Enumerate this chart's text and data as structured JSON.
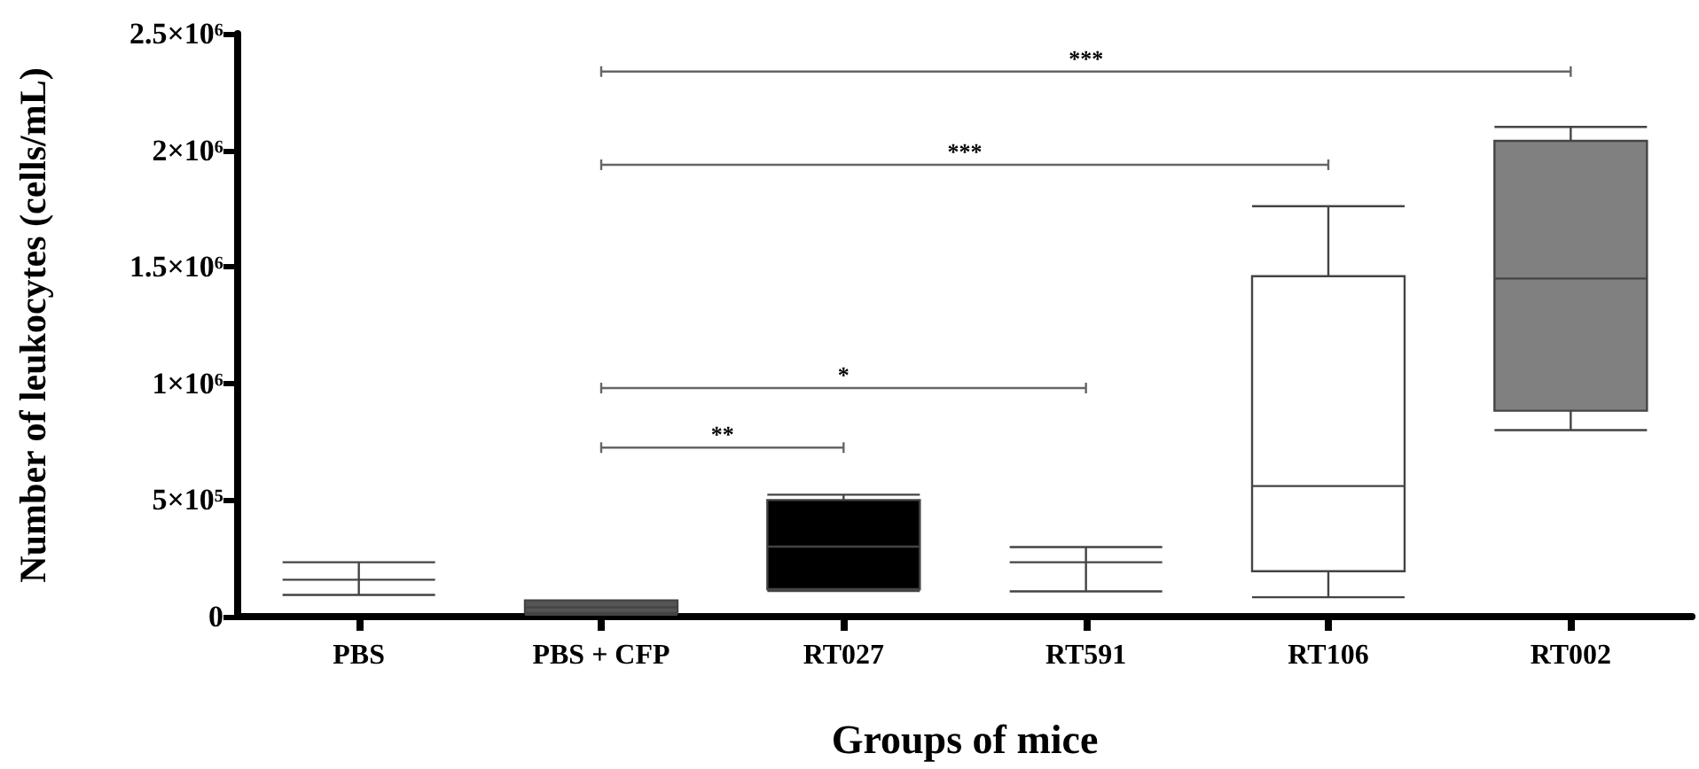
{
  "chart_data": {
    "type": "box",
    "xlabel": "Groups of mice",
    "ylabel": "Number of leukocytes (cells/mL)",
    "categories": [
      "PBS",
      "PBS + CFP",
      "RT027",
      "RT591",
      "RT106",
      "RT002"
    ],
    "boxes": [
      {
        "low": 93000,
        "q1": 158000,
        "median": 158000,
        "q3": 158000,
        "high": 233000
      },
      {
        "low": 8000,
        "q1": 15000,
        "median": 40000,
        "q3": 70000,
        "high": 70000
      },
      {
        "low": 110000,
        "q1": 118000,
        "median": 300000,
        "q3": 500000,
        "high": 523000
      },
      {
        "low": 108000,
        "q1": 233000,
        "median": 233000,
        "q3": 233000,
        "high": 298000
      },
      {
        "low": 83000,
        "q1": 195000,
        "median": 560000,
        "q3": 1460000,
        "high": 1760000
      },
      {
        "low": 800000,
        "q1": 883000,
        "median": 1450000,
        "q3": 2040000,
        "high": 2100000
      }
    ],
    "colors": [
      "#444444",
      "#555555",
      "#000000",
      "#444444",
      "#ffffff",
      "#808080"
    ],
    "ylim": [
      0,
      2500000
    ],
    "yticks": [
      0,
      {
        "value": 500000,
        "label": "5×10⁵"
      },
      {
        "value": 1000000,
        "label": "1×10⁶"
      },
      {
        "value": 1500000,
        "label": "1.5×10⁶"
      },
      {
        "value": 2000000,
        "label": "2×10⁶"
      },
      {
        "value": 2500000,
        "label": "2.5×10⁶"
      }
    ],
    "grid": false,
    "annotations": [
      "**",
      "*",
      "***",
      "***"
    ]
  }
}
